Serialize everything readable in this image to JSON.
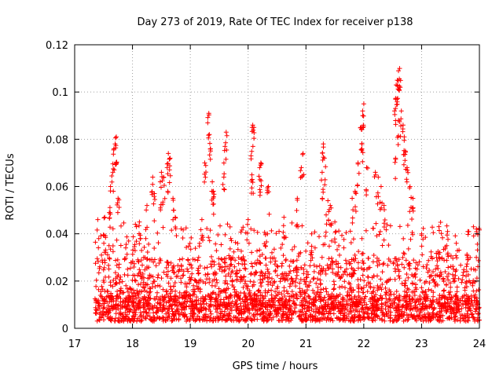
{
  "chart_data": {
    "type": "scatter",
    "title": "Day 273 of 2019, Rate Of TEC Index for receiver p138",
    "xlabel": "GPS time / hours",
    "ylabel": "ROTI / TECUs",
    "xlim": [
      17,
      24
    ],
    "ylim": [
      0,
      0.12
    ],
    "x_ticks": [
      17,
      18,
      19,
      20,
      21,
      22,
      23,
      24
    ],
    "x_tick_labels": [
      "17",
      "18",
      "19",
      "20",
      "21",
      "22",
      "23",
      "24"
    ],
    "y_ticks": [
      0,
      0.02,
      0.04,
      0.06,
      0.08,
      0.1,
      0.12
    ],
    "y_tick_labels": [
      "0",
      "0.02",
      "0.04",
      "0.06",
      "0.08",
      "0.1",
      "0.12"
    ],
    "grid": true,
    "marker": "+",
    "color": "#ff0000",
    "x_range_of_data": [
      17.35,
      24.0
    ],
    "series": [
      {
        "name": "ROTI",
        "bands": [
          {
            "from": 17.35,
            "to": 24.0,
            "min": 0.003,
            "max": 0.014,
            "count": 1400
          },
          {
            "from": 17.35,
            "to": 24.0,
            "min": 0.008,
            "max": 0.03,
            "count": 1000
          },
          {
            "from": 17.35,
            "to": 24.0,
            "min": 0.015,
            "max": 0.045,
            "count": 450
          }
        ],
        "points": [
          {
            "x": 17.7,
            "y": 0.078
          },
          {
            "x": 17.72,
            "y": 0.081
          },
          {
            "x": 17.68,
            "y": 0.076
          },
          {
            "x": 17.66,
            "y": 0.066
          },
          {
            "x": 17.62,
            "y": 0.06
          },
          {
            "x": 17.75,
            "y": 0.055
          },
          {
            "x": 17.4,
            "y": 0.046
          },
          {
            "x": 17.52,
            "y": 0.047
          },
          {
            "x": 17.6,
            "y": 0.049
          },
          {
            "x": 18.05,
            "y": 0.044
          },
          {
            "x": 18.12,
            "y": 0.045
          },
          {
            "x": 18.35,
            "y": 0.064
          },
          {
            "x": 18.38,
            "y": 0.057
          },
          {
            "x": 18.25,
            "y": 0.052
          },
          {
            "x": 18.5,
            "y": 0.066
          },
          {
            "x": 18.54,
            "y": 0.064
          },
          {
            "x": 18.48,
            "y": 0.062
          },
          {
            "x": 18.62,
            "y": 0.074
          },
          {
            "x": 18.65,
            "y": 0.072
          },
          {
            "x": 18.6,
            "y": 0.068
          },
          {
            "x": 18.7,
            "y": 0.055
          },
          {
            "x": 18.74,
            "y": 0.047
          },
          {
            "x": 19.2,
            "y": 0.046
          },
          {
            "x": 19.25,
            "y": 0.07
          },
          {
            "x": 19.32,
            "y": 0.091
          },
          {
            "x": 19.33,
            "y": 0.082
          },
          {
            "x": 19.35,
            "y": 0.076
          },
          {
            "x": 19.38,
            "y": 0.062
          },
          {
            "x": 19.4,
            "y": 0.058
          },
          {
            "x": 19.62,
            "y": 0.083
          },
          {
            "x": 19.6,
            "y": 0.077
          },
          {
            "x": 19.58,
            "y": 0.064
          },
          {
            "x": 19.7,
            "y": 0.038
          },
          {
            "x": 20.08,
            "y": 0.086
          },
          {
            "x": 20.1,
            "y": 0.085
          },
          {
            "x": 20.05,
            "y": 0.073
          },
          {
            "x": 20.07,
            "y": 0.063
          },
          {
            "x": 20.2,
            "y": 0.068
          },
          {
            "x": 20.22,
            "y": 0.07
          },
          {
            "x": 20.0,
            "y": 0.046
          },
          {
            "x": 20.35,
            "y": 0.06
          },
          {
            "x": 20.62,
            "y": 0.047
          },
          {
            "x": 20.85,
            "y": 0.055
          },
          {
            "x": 20.92,
            "y": 0.068
          },
          {
            "x": 20.95,
            "y": 0.074
          },
          {
            "x": 21.1,
            "y": 0.04
          },
          {
            "x": 21.3,
            "y": 0.078
          },
          {
            "x": 21.32,
            "y": 0.072
          },
          {
            "x": 21.28,
            "y": 0.066
          },
          {
            "x": 21.38,
            "y": 0.054
          },
          {
            "x": 21.42,
            "y": 0.052
          },
          {
            "x": 21.35,
            "y": 0.048
          },
          {
            "x": 21.5,
            "y": 0.045
          },
          {
            "x": 21.8,
            "y": 0.055
          },
          {
            "x": 21.85,
            "y": 0.058
          },
          {
            "x": 21.9,
            "y": 0.07
          },
          {
            "x": 21.95,
            "y": 0.085
          },
          {
            "x": 21.98,
            "y": 0.092
          },
          {
            "x": 22.0,
            "y": 0.095
          },
          {
            "x": 21.97,
            "y": 0.078
          },
          {
            "x": 22.05,
            "y": 0.068
          },
          {
            "x": 22.2,
            "y": 0.066
          },
          {
            "x": 22.25,
            "y": 0.064
          },
          {
            "x": 22.3,
            "y": 0.06
          },
          {
            "x": 22.35,
            "y": 0.052
          },
          {
            "x": 22.55,
            "y": 0.097
          },
          {
            "x": 22.56,
            "y": 0.103
          },
          {
            "x": 22.58,
            "y": 0.105
          },
          {
            "x": 22.6,
            "y": 0.109
          },
          {
            "x": 22.62,
            "y": 0.11
          },
          {
            "x": 22.6,
            "y": 0.088
          },
          {
            "x": 22.65,
            "y": 0.092
          },
          {
            "x": 22.68,
            "y": 0.086
          },
          {
            "x": 22.7,
            "y": 0.081
          },
          {
            "x": 22.72,
            "y": 0.075
          },
          {
            "x": 22.55,
            "y": 0.072
          },
          {
            "x": 22.75,
            "y": 0.068
          },
          {
            "x": 22.8,
            "y": 0.06
          },
          {
            "x": 22.85,
            "y": 0.055
          },
          {
            "x": 23.0,
            "y": 0.04
          },
          {
            "x": 23.3,
            "y": 0.043
          },
          {
            "x": 23.45,
            "y": 0.041
          },
          {
            "x": 23.6,
            "y": 0.036
          },
          {
            "x": 23.8,
            "y": 0.041
          },
          {
            "x": 23.95,
            "y": 0.042
          }
        ]
      }
    ]
  }
}
